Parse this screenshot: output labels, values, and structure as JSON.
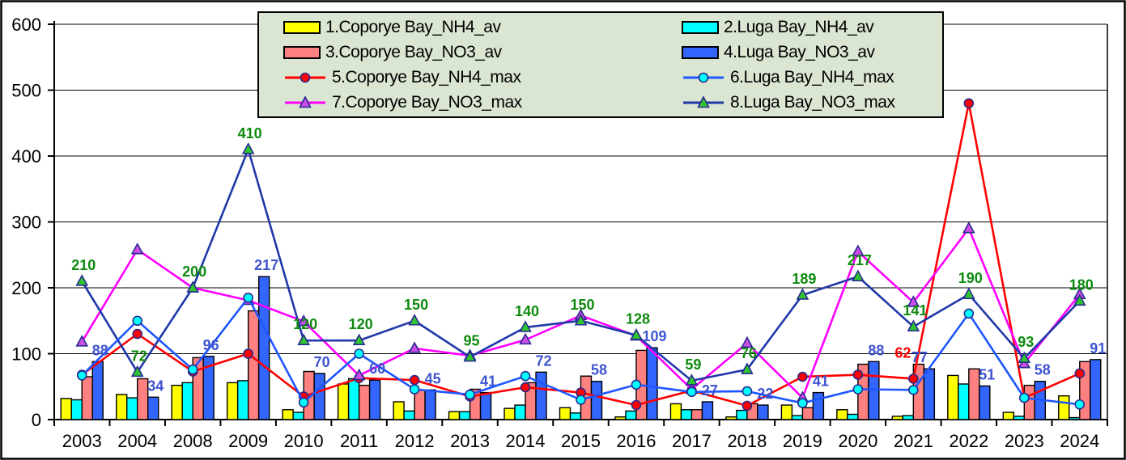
{
  "chart_data": {
    "type": "bar+line combo",
    "title": "",
    "xlabel": "",
    "ylabel": "",
    "y_axis": {
      "min": 0,
      "max": 600,
      "step": 100,
      "tick_labels": [
        "0",
        "100",
        "200",
        "300",
        "400",
        "500",
        "600"
      ]
    },
    "grid": "horizontal",
    "legend_position": "top-center",
    "categories": [
      "2003",
      "2004",
      "2008",
      "2009",
      "2010",
      "2011",
      "2012",
      "2013",
      "2014",
      "2015",
      "2016",
      "2017",
      "2018",
      "2019",
      "2020",
      "2021",
      "2022",
      "2023",
      "2024"
    ],
    "bar_series": [
      {
        "id": 1,
        "name": "1.Coporye Bay_NH4_av",
        "color": "#FFFF00",
        "values": [
          32,
          38,
          52,
          56,
          15,
          54,
          27,
          12,
          17,
          18,
          4,
          24,
          4,
          22,
          15,
          5,
          67,
          11,
          36
        ],
        "data_labels": false
      },
      {
        "id": 2,
        "name": "2.Luga Bay_NH4_av",
        "color": "#00FFFF",
        "values": [
          30,
          33,
          56,
          59,
          11,
          62,
          13,
          12,
          22,
          10,
          13,
          15,
          14,
          6,
          8,
          6,
          54,
          5,
          3
        ],
        "data_labels": false
      },
      {
        "id": 3,
        "name": "3.Coporye Bay_NO3_av",
        "color": "#FF8080",
        "values": [
          65,
          62,
          94,
          165,
          73,
          52,
          45,
          46,
          56,
          66,
          105,
          15,
          24,
          18,
          84,
          84,
          77,
          52,
          88
        ],
        "data_labels": false
      },
      {
        "id": 4,
        "name": "4.Luga Bay_NO3_av",
        "color": "#3366FF",
        "values": [
          88,
          34,
          96,
          217,
          70,
          60,
          45,
          41,
          72,
          58,
          109,
          27,
          22,
          41,
          88,
          77,
          51,
          58,
          91
        ],
        "data_labels": true,
        "label_color": "#3E53D0"
      }
    ],
    "line_series": [
      {
        "id": 5,
        "name": "5.Coporye Bay_NH4_max",
        "color": "#FF0000",
        "marker": "circle",
        "marker_fill": "#FF0000",
        "marker_stroke": "#282B8F",
        "values": [
          68,
          130,
          73,
          100,
          35,
          63,
          60,
          35,
          49,
          41,
          22,
          44,
          21,
          65,
          68,
          62,
          480,
          33,
          70
        ],
        "data_labels": false,
        "label_indices": [
          15
        ],
        "label_color": "#FF0000"
      },
      {
        "id": 6,
        "name": "6.Luga Bay_NH4_max",
        "color": "#1E56FF",
        "marker": "circle",
        "marker_fill": "#00FFFF",
        "marker_stroke": "#282B8F",
        "values": [
          67,
          150,
          76,
          185,
          26,
          100,
          46,
          38,
          66,
          30,
          53,
          42,
          43,
          25,
          46,
          45,
          161,
          33,
          23
        ],
        "data_labels": false
      },
      {
        "id": 7,
        "name": "7.Coporye Bay_NO3_max",
        "color": "#FF00FF",
        "marker": "triangle",
        "marker_fill": "#CC4DE6",
        "marker_stroke": "#282B8F",
        "values": [
          118,
          258,
          200,
          181,
          149,
          67,
          108,
          97,
          121,
          158,
          127,
          46,
          116,
          33,
          255,
          178,
          290,
          85,
          190
        ],
        "data_labels": false
      },
      {
        "id": 8,
        "name": "8.Luga Bay_NO3_max",
        "color": "#2038A8",
        "marker": "triangle",
        "marker_fill": "#2FC52F",
        "marker_stroke": "#282B8F",
        "values": [
          210,
          72,
          200,
          410,
          120,
          120,
          150,
          95,
          140,
          150,
          128,
          59,
          76,
          189,
          217,
          141,
          190,
          93,
          180
        ],
        "data_labels": true,
        "label_color": "#0E8A0E"
      }
    ]
  }
}
